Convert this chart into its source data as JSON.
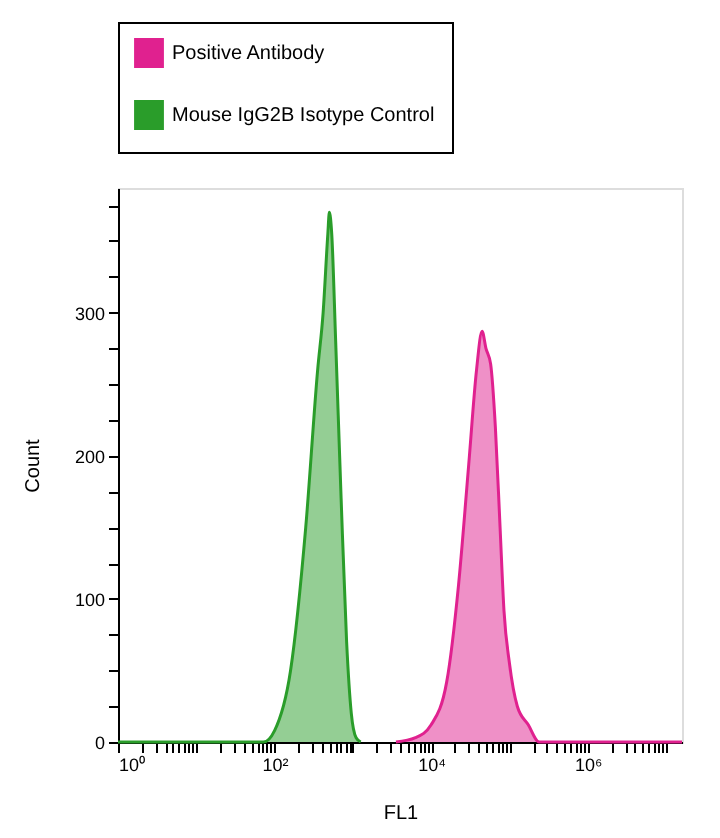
{
  "chart_data": {
    "type": "area",
    "xlabel": "FL1",
    "ylabel": "Count",
    "log": "x",
    "grid": false,
    "legend": "top",
    "xlim": [
      1,
      16000000
    ],
    "ylim": [
      0,
      387
    ],
    "xticks": [
      {
        "value": 1,
        "label": "10⁰"
      },
      {
        "value": 2,
        "label": null
      },
      {
        "value": 3,
        "label": null
      },
      {
        "value": 4,
        "label": null
      },
      {
        "value": 5,
        "label": null
      },
      {
        "value": 6,
        "label": null
      },
      {
        "value": 7,
        "label": null
      },
      {
        "value": 8,
        "label": null
      },
      {
        "value": 9,
        "label": null
      },
      {
        "value": 10,
        "label": null
      },
      {
        "value": 20,
        "label": null
      },
      {
        "value": 30,
        "label": null
      },
      {
        "value": 40,
        "label": null
      },
      {
        "value": 50,
        "label": null
      },
      {
        "value": 60,
        "label": null
      },
      {
        "value": 70,
        "label": null
      },
      {
        "value": 80,
        "label": null
      },
      {
        "value": 90,
        "label": null
      },
      {
        "value": 100,
        "label": "10²"
      },
      {
        "value": 200,
        "label": null
      },
      {
        "value": 300,
        "label": null
      },
      {
        "value": 400,
        "label": null
      },
      {
        "value": 500,
        "label": null
      },
      {
        "value": 600,
        "label": null
      },
      {
        "value": 700,
        "label": null
      },
      {
        "value": 800,
        "label": null
      },
      {
        "value": 900,
        "label": null
      },
      {
        "value": 1000,
        "label": null
      },
      {
        "value": 2000,
        "label": null
      },
      {
        "value": 3000,
        "label": null
      },
      {
        "value": 4000,
        "label": null
      },
      {
        "value": 5000,
        "label": null
      },
      {
        "value": 6000,
        "label": null
      },
      {
        "value": 7000,
        "label": null
      },
      {
        "value": 8000,
        "label": null
      },
      {
        "value": 9000,
        "label": null
      },
      {
        "value": 10000,
        "label": "10⁴"
      },
      {
        "value": 20000,
        "label": null
      },
      {
        "value": 30000,
        "label": null
      },
      {
        "value": 40000,
        "label": null
      },
      {
        "value": 50000,
        "label": null
      },
      {
        "value": 60000,
        "label": null
      },
      {
        "value": 70000,
        "label": null
      },
      {
        "value": 80000,
        "label": null
      },
      {
        "value": 90000,
        "label": null
      },
      {
        "value": 100000,
        "label": null
      },
      {
        "value": 200000,
        "label": null
      },
      {
        "value": 300000,
        "label": null
      },
      {
        "value": 400000,
        "label": null
      },
      {
        "value": 500000,
        "label": null
      },
      {
        "value": 600000,
        "label": null
      },
      {
        "value": 700000,
        "label": null
      },
      {
        "value": 800000,
        "label": null
      },
      {
        "value": 900000,
        "label": null
      },
      {
        "value": 1000000,
        "label": "10⁶"
      },
      {
        "value": 2000000,
        "label": null
      },
      {
        "value": 3000000,
        "label": null
      },
      {
        "value": 4000000,
        "label": null
      },
      {
        "value": 5000000,
        "label": null
      },
      {
        "value": 6000000,
        "label": null
      },
      {
        "value": 7000000,
        "label": null
      },
      {
        "value": 8000000,
        "label": null
      },
      {
        "value": 9000000,
        "label": null
      },
      {
        "value": 10000000,
        "label": null
      }
    ],
    "yticks": [
      0,
      {
        "value": 25,
        "label": null
      },
      {
        "value": 50,
        "label": null
      },
      {
        "value": 75,
        "label": null
      },
      100,
      {
        "value": 125,
        "label": null
      },
      {
        "value": 150,
        "label": null
      },
      {
        "value": 175,
        "label": null
      },
      200,
      {
        "value": 225,
        "label": null
      },
      {
        "value": 250,
        "label": null
      },
      {
        "value": 275,
        "label": null
      },
      300,
      {
        "value": 325,
        "label": null
      },
      {
        "value": 350,
        "label": null
      },
      {
        "value": 375,
        "label": null
      }
    ],
    "series": [
      {
        "name": "Positive Antibody",
        "color": "#e0218f",
        "x": [
          3550,
          6310,
          10000,
          15800,
          22400,
          30200,
          38000,
          44700,
          50100,
          57500,
          66100,
          75900,
          85100,
          100000,
          126000,
          174000,
          240000,
          16000000
        ],
        "values": [
          0,
          3,
          12,
          42,
          110,
          194,
          260,
          287,
          275,
          264,
          220,
          150,
          92,
          55,
          25,
          12,
          0,
          0
        ]
      },
      {
        "name": "Mouse IgG2B Isotype Control",
        "color": "#2a9d2a",
        "x": [
          1,
          72,
          100,
          160,
          250,
          355,
          417,
          479,
          501,
          537,
          603,
          708,
          832,
          955,
          1100,
          1260
        ],
        "values": [
          0,
          0,
          8,
          50,
          150,
          260,
          300,
          355,
          370,
          355,
          280,
          170,
          70,
          20,
          3,
          0
        ]
      }
    ]
  }
}
